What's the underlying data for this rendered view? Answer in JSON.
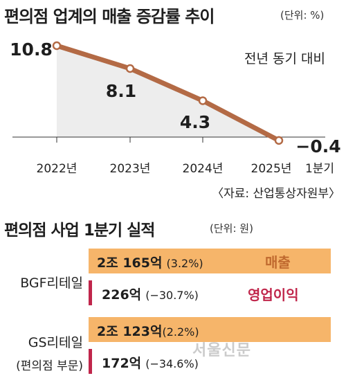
{
  "header": {
    "title": "편의점 업계의 매출 증감률 추이",
    "unit": "(단위: %)"
  },
  "chart_data": [
    {
      "type": "line",
      "title": "편의점 업계의 매출 증감률 추이",
      "unit": "(단위: %)",
      "note": "전년 동기 대비",
      "categories": [
        "2022년",
        "2023년",
        "2024년",
        "2025년 1분기"
      ],
      "category_labels": [
        "2022년",
        "2023년",
        "2024년",
        "2025년",
        "1분기"
      ],
      "values": [
        10.8,
        8.1,
        4.3,
        -0.4
      ],
      "value_labels": [
        "10.8",
        "8.1",
        "4.3",
        "−0.4"
      ],
      "area_fill": true,
      "colors": {
        "line": "#b36a45",
        "area": "#ededed",
        "marker_fill": "#ffffff"
      },
      "source": "〈자료: 산업통상자원부〉"
    },
    {
      "type": "bar",
      "title": "편의점 사업 1분기 실적",
      "unit": "(단위: 원)",
      "series": [
        {
          "name": "매출",
          "color": "#f6b56a"
        },
        {
          "name": "영업이익",
          "color": "#c0264b"
        }
      ],
      "companies": [
        {
          "name": "BGF리테일",
          "sublabel": "",
          "sales": {
            "amount": "2조 165억",
            "change": "(3.2%)"
          },
          "operating_profit": {
            "amount": "226억",
            "change": "(−30.7%)"
          }
        },
        {
          "name": "GS리테일",
          "sublabel": "(편의점 부문)",
          "sales": {
            "amount": "2조 123억",
            "change": "(2.2%)"
          },
          "operating_profit": {
            "amount": "172억",
            "change": "(−34.6%)"
          }
        }
      ]
    }
  ]
}
